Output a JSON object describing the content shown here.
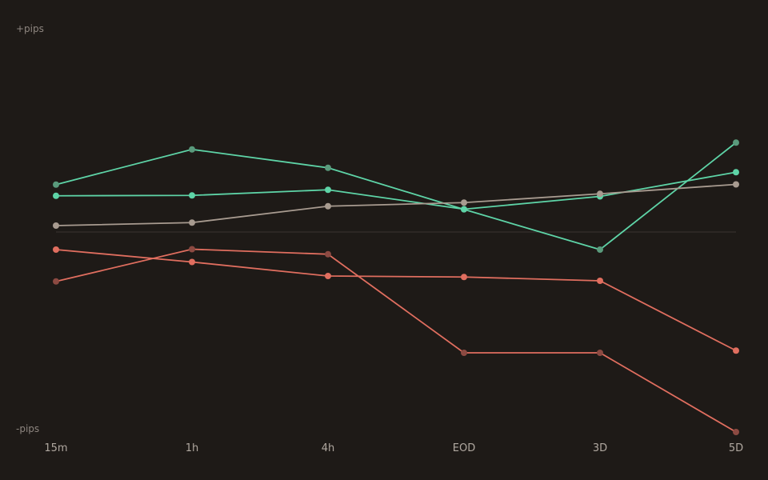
{
  "chart_data": {
    "type": "line",
    "y_top_label": "+pips",
    "y_bottom_label": "-pips",
    "categories": [
      "15m",
      "1h",
      "4h",
      "EOD",
      "3D",
      "5D"
    ],
    "ylim": [
      -100,
      100
    ],
    "zero_line": true,
    "grid": false,
    "series": [
      {
        "color": "#5ed4a7",
        "values": [
          23.7,
          41.3,
          32.1,
          11.3,
          -8.8,
          44.7
        ],
        "marker_color": "#5a9a7c"
      },
      {
        "color": "#5ed4a7",
        "values": [
          18.1,
          18.3,
          21.1,
          11.4,
          17.8,
          29.9
        ]
      },
      {
        "color": "#a89b90",
        "values": [
          3.2,
          4.7,
          12.9,
          14.7,
          19.1,
          23.8
        ]
      },
      {
        "color": "#e06e5f",
        "values": [
          -8.8,
          -15,
          -22,
          -22.5,
          -24.4,
          -59.3
        ]
      },
      {
        "color": "#e06e5f",
        "values": [
          -24.7,
          -8.6,
          -11.1,
          -60.4,
          -60.4,
          -100
        ],
        "marker_color": "#8c4a42"
      }
    ]
  }
}
